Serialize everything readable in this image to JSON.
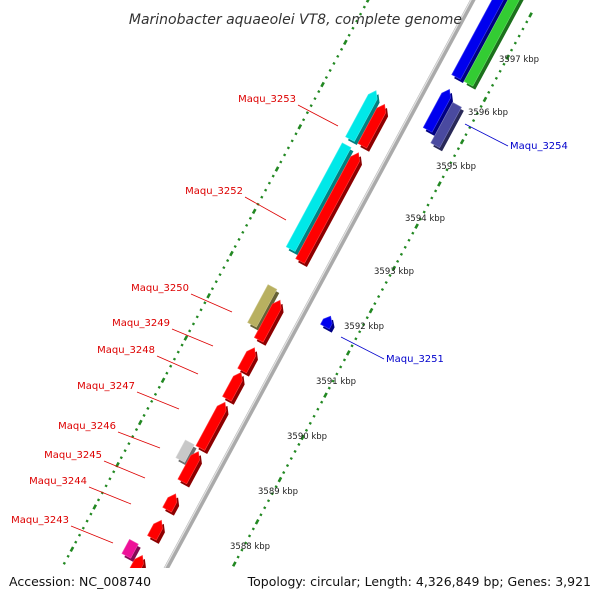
{
  "title": "Marinobacter aquaeolei VT8, complete genome",
  "footer": {
    "accession": "Accession: NC_008740",
    "topology": "Topology: circular; Length: 4,326,849 bp; Genes: 3,921"
  },
  "colors": {
    "red": "#ff0000",
    "cyan": "#00e8e8",
    "blue": "#0000ee",
    "green": "#33cc33",
    "olive": "#b8b060",
    "silver": "#c8c8c8",
    "magenta": "#ee1199",
    "navy": "#4a4aa0",
    "tick": "#228822",
    "axis": "#999999",
    "left_label": "#dd0000",
    "right_label": "#0000cc"
  },
  "kbp_ticks": [
    "3588 kbp",
    "3589 kbp",
    "3590 kbp",
    "3591 kbp",
    "3592 kbp",
    "3593 kbp",
    "3594 kbp",
    "3595 kbp",
    "3596 kbp",
    "3597 kbp"
  ],
  "genes_left": [
    {
      "name": "Maqu_3243",
      "color": "magenta"
    },
    {
      "name": "Maqu_3244",
      "color": "red"
    },
    {
      "name": "Maqu_3245",
      "color": "red"
    },
    {
      "name": "Maqu_3246",
      "color": "silver"
    },
    {
      "name": "Maqu_3247",
      "color": "red"
    },
    {
      "name": "Maqu_3248",
      "color": "red"
    },
    {
      "name": "Maqu_3249",
      "color": "red"
    },
    {
      "name": "Maqu_3250",
      "color": "olive"
    },
    {
      "name": "Maqu_3252",
      "color": "cyan"
    },
    {
      "name": "Maqu_3253",
      "color": "cyan"
    }
  ],
  "genes_right": [
    {
      "name": "Maqu_3251",
      "color": "blue"
    },
    {
      "name": "Maqu_3254",
      "color": "navy"
    }
  ]
}
